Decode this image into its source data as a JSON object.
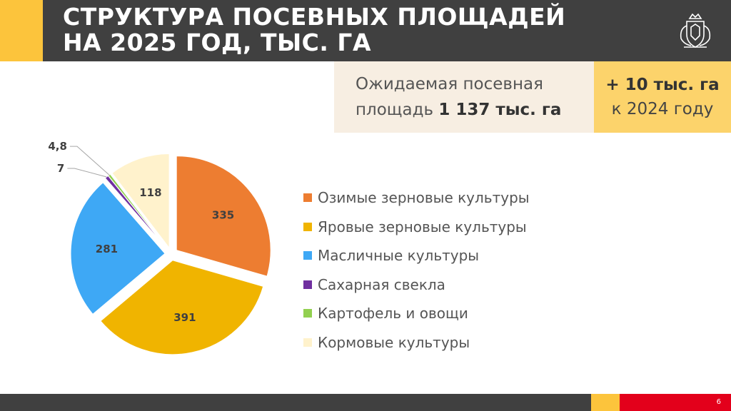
{
  "header": {
    "title": "СТРУКТУРА ПОСЕВНЫХ ПЛОЩАДЕЙ\nНА 2025 ГОД, ТЫС. ГА"
  },
  "info": {
    "text_prefix": "Ожидаемая посевная площадь ",
    "text_bold": "1 137 тыс. га",
    "delta_main": "+ 10 тыс. га",
    "delta_sub": "к 2024 году"
  },
  "footer": {
    "page_number": "6"
  },
  "colors": {
    "header": "#404040",
    "accent_yellow": "#fcc43c",
    "accent_red": "#e3001b",
    "info_bg": "#f7eee2",
    "delta_bg": "#fcd36b"
  },
  "chart_data": {
    "type": "pie",
    "title": "",
    "start": "12 o'clock, clockwise",
    "exploded": true,
    "legend_position": "right",
    "slices": [
      {
        "name": "Озимые зерновые культуры",
        "value": 335,
        "label": "335",
        "color": "#ed7d31"
      },
      {
        "name": "Яровые зерновые культуры",
        "value": 391,
        "label": "391",
        "color": "#f0b400"
      },
      {
        "name": "Масличные культуры",
        "value": 281,
        "label": "281",
        "color": "#3ea8f5"
      },
      {
        "name": "Сахарная свекла",
        "value": 7,
        "label": "7",
        "color": "#7030a0"
      },
      {
        "name": "Картофель и овощи",
        "value": 4.8,
        "label": "4,8",
        "color": "#92d050"
      },
      {
        "name": "Кормовые культуры",
        "value": 118,
        "label": "118",
        "color": "#fff2cc"
      }
    ]
  }
}
